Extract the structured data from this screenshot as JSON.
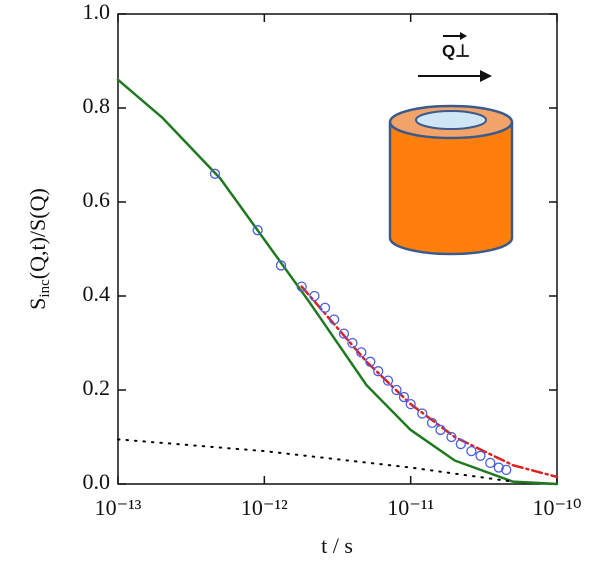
{
  "chart_data": {
    "type": "line",
    "x_label": "t / s",
    "y_label": {
      "main": "S",
      "sub": "inc",
      "rest": "(Q,t)/S(Q)"
    },
    "annotation": "Q⊥",
    "xscale": "log",
    "xlim": [
      1e-13,
      1e-10
    ],
    "xticks": [
      {
        "value": 1e-13,
        "label": "10⁻¹³"
      },
      {
        "value": 1e-12,
        "label": "10⁻¹²"
      },
      {
        "value": 1e-11,
        "label": "10⁻¹¹"
      },
      {
        "value": 1e-10,
        "label": "10⁻¹⁰"
      }
    ],
    "ylim": [
      0,
      1
    ],
    "yticks": [
      {
        "value": 0,
        "label": "0.0"
      },
      0.2,
      0.4,
      0.6,
      0.8,
      {
        "value": 1,
        "label": "1.0"
      }
    ],
    "series": [
      {
        "color": "#1f7a1f",
        "style": "solid",
        "x": [
          1e-13,
          2e-13,
          5e-13,
          1e-12,
          2e-12,
          5e-12,
          1e-11,
          2e-11,
          5e-11,
          1e-10
        ],
        "values": [
          0.86,
          0.78,
          0.65,
          0.52,
          0.39,
          0.21,
          0.115,
          0.05,
          0.005,
          0.0
        ]
      },
      {
        "color": "#e02020",
        "style": "dash-dot",
        "x": [
          1.8e-12,
          3e-12,
          5e-12,
          1e-11,
          2e-11,
          5e-11,
          1e-10
        ],
        "values": [
          0.42,
          0.34,
          0.26,
          0.17,
          0.1,
          0.04,
          0.015
        ]
      },
      {
        "color": "#000000",
        "style": "dotted",
        "x": [
          1e-13,
          1e-12,
          1e-11,
          5e-11
        ],
        "values": [
          0.095,
          0.07,
          0.035,
          0.005
        ]
      },
      {
        "color": "#4a5fe0",
        "style": "circles",
        "x": [
          4.6e-13,
          9e-13,
          1.3e-12,
          1.8e-12,
          2.2e-12,
          2.6e-12,
          3e-12,
          3.5e-12,
          4e-12,
          4.6e-12,
          5.3e-12,
          6e-12,
          7e-12,
          8e-12,
          9e-12,
          1e-11,
          1.2e-11,
          1.4e-11,
          1.6e-11,
          1.9e-11,
          2.2e-11,
          2.6e-11,
          3e-11,
          3.5e-11,
          4e-11,
          4.5e-11
        ],
        "values": [
          0.66,
          0.54,
          0.465,
          0.42,
          0.4,
          0.375,
          0.35,
          0.32,
          0.3,
          0.28,
          0.26,
          0.24,
          0.22,
          0.2,
          0.185,
          0.17,
          0.15,
          0.13,
          0.115,
          0.1,
          0.085,
          0.07,
          0.06,
          0.045,
          0.035,
          0.03
        ]
      }
    ]
  }
}
